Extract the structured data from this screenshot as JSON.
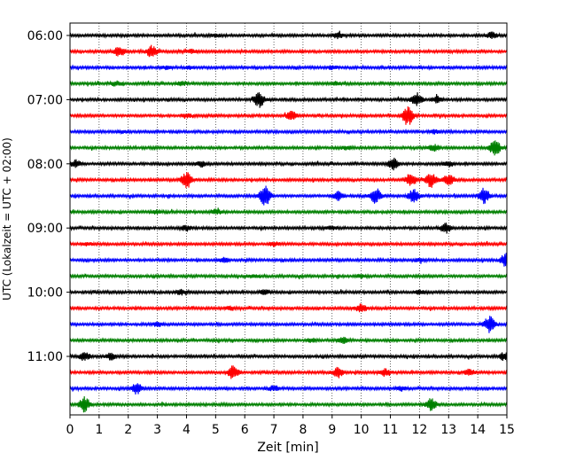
{
  "chart_data": {
    "type": "line",
    "subtype": "helicorder",
    "xlabel": "Zeit  [min]",
    "ylabel": "UTC (Lokalzeit = UTC + 02:00)",
    "xlim": [
      0,
      15
    ],
    "x_ticks": [
      0,
      1,
      2,
      3,
      4,
      5,
      6,
      7,
      8,
      9,
      10,
      11,
      12,
      13,
      14,
      15
    ],
    "x_tick_labels": [
      "0",
      "1",
      "2",
      "3",
      "4",
      "5",
      "6",
      "7",
      "8",
      "9",
      "10",
      "11",
      "12",
      "13",
      "14",
      "15"
    ],
    "x_grid": "dotted",
    "y_ticks": [
      "06:00",
      "07:00",
      "08:00",
      "09:00",
      "10:00",
      "11:00"
    ],
    "y_tick_traces": [
      0,
      4,
      8,
      12,
      16,
      20
    ],
    "trace_minutes": 15,
    "trace_colors": [
      "#000000",
      "#ff0000",
      "#0000ff",
      "#008000"
    ],
    "traces": [
      {
        "start": "06:00",
        "events": [
          [
            9.2,
            0.3
          ],
          [
            14.5,
            0.4
          ],
          [
            5.0,
            0.15
          ]
        ]
      },
      {
        "start": "06:15",
        "events": [
          [
            1.7,
            0.6
          ],
          [
            2.8,
            0.7
          ],
          [
            4.2,
            0.2
          ]
        ]
      },
      {
        "start": "06:30",
        "events": [
          [
            3.3,
            0.2
          ],
          [
            9.0,
            0.15
          ],
          [
            4.1,
            0.15
          ]
        ]
      },
      {
        "start": "06:45",
        "events": [
          [
            1.6,
            0.25
          ],
          [
            3.8,
            0.2
          ],
          [
            9.1,
            0.2
          ]
        ]
      },
      {
        "start": "07:00",
        "events": [
          [
            6.5,
            0.9
          ],
          [
            11.9,
            0.8
          ],
          [
            12.6,
            0.35
          ]
        ]
      },
      {
        "start": "07:15",
        "events": [
          [
            7.6,
            0.5
          ],
          [
            11.6,
            1.2
          ],
          [
            4.0,
            0.2
          ]
        ]
      },
      {
        "start": "07:30",
        "events": [
          [
            12.5,
            0.2
          ],
          [
            1.8,
            0.15
          ]
        ]
      },
      {
        "start": "07:45",
        "events": [
          [
            12.5,
            0.4
          ],
          [
            14.6,
            1.0
          ],
          [
            9.5,
            0.2
          ]
        ]
      },
      {
        "start": "08:00",
        "events": [
          [
            0.2,
            0.4
          ],
          [
            4.5,
            0.3
          ],
          [
            11.1,
            0.8
          ],
          [
            13.0,
            0.3
          ]
        ]
      },
      {
        "start": "08:15",
        "events": [
          [
            4.0,
            1.0
          ],
          [
            11.7,
            0.8
          ],
          [
            12.4,
            0.9
          ],
          [
            13.0,
            0.7
          ]
        ]
      },
      {
        "start": "08:30",
        "events": [
          [
            6.7,
            1.3
          ],
          [
            9.2,
            0.6
          ],
          [
            10.5,
            0.9
          ],
          [
            11.8,
            0.8
          ],
          [
            14.2,
            0.9
          ]
        ]
      },
      {
        "start": "08:45",
        "events": [
          [
            5.0,
            0.3
          ],
          [
            3.0,
            0.2
          ]
        ]
      },
      {
        "start": "09:00",
        "events": [
          [
            4.0,
            0.3
          ],
          [
            12.9,
            0.6
          ],
          [
            9.0,
            0.2
          ]
        ]
      },
      {
        "start": "09:15",
        "events": [
          [
            0.6,
            0.15
          ],
          [
            7.0,
            0.2
          ]
        ]
      },
      {
        "start": "09:30",
        "events": [
          [
            5.3,
            0.25
          ],
          [
            14.95,
            0.8
          ],
          [
            12.0,
            0.2
          ]
        ]
      },
      {
        "start": "09:45",
        "events": [
          [
            6.3,
            0.15
          ],
          [
            10.0,
            0.15
          ]
        ]
      },
      {
        "start": "10:00",
        "events": [
          [
            3.8,
            0.3
          ],
          [
            6.7,
            0.25
          ],
          [
            12.0,
            0.2
          ]
        ]
      },
      {
        "start": "10:15",
        "events": [
          [
            10.0,
            0.5
          ],
          [
            5.5,
            0.2
          ]
        ]
      },
      {
        "start": "10:30",
        "events": [
          [
            14.4,
            1.0
          ],
          [
            3.0,
            0.25
          ]
        ]
      },
      {
        "start": "10:45",
        "events": [
          [
            9.4,
            0.35
          ],
          [
            8.3,
            0.2
          ]
        ]
      },
      {
        "start": "11:00",
        "events": [
          [
            0.5,
            0.5
          ],
          [
            1.4,
            0.35
          ],
          [
            14.9,
            0.45
          ]
        ]
      },
      {
        "start": "11:15",
        "events": [
          [
            5.6,
            0.9
          ],
          [
            9.2,
            0.6
          ],
          [
            10.8,
            0.4
          ],
          [
            13.7,
            0.4
          ]
        ]
      },
      {
        "start": "11:30",
        "events": [
          [
            2.3,
            0.7
          ],
          [
            7.0,
            0.3
          ],
          [
            11.4,
            0.25
          ]
        ]
      },
      {
        "start": "11:45",
        "events": [
          [
            0.5,
            0.9
          ],
          [
            12.4,
            0.7
          ]
        ]
      }
    ]
  }
}
